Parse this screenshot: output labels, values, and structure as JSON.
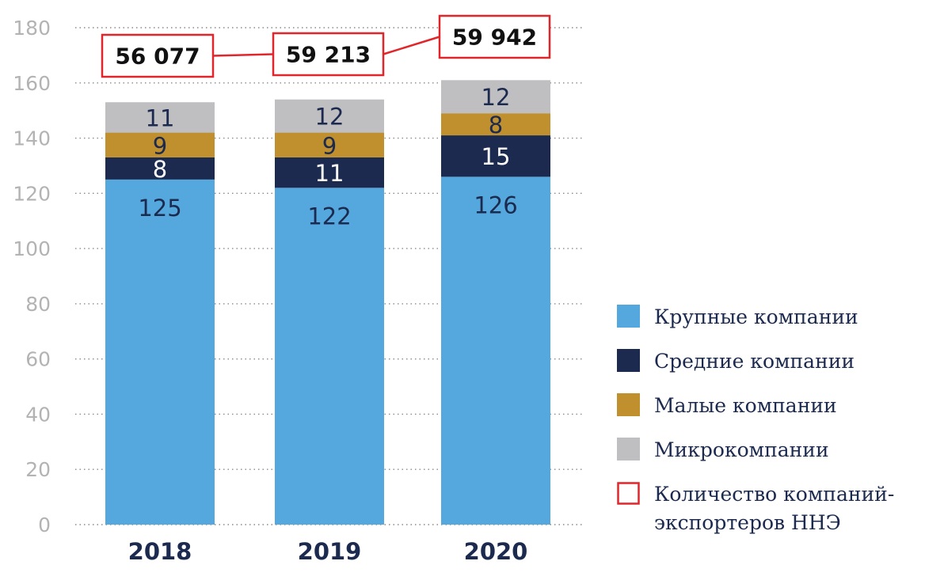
{
  "chart_data": {
    "type": "bar",
    "stacked": true,
    "categories": [
      "2018",
      "2019",
      "2020"
    ],
    "series": [
      {
        "name": "Крупные компании",
        "values": [
          125,
          122,
          126
        ],
        "color": "#55a8dd",
        "label_color": "#1b2a4e"
      },
      {
        "name": "Средние компании",
        "values": [
          8,
          11,
          15
        ],
        "color": "#1b2a4e",
        "label_color": "#ffffff"
      },
      {
        "name": "Малые компании",
        "values": [
          9,
          9,
          8
        ],
        "color": "#c0902e",
        "label_color": "#1b2a4e"
      },
      {
        "name": "Микрокомпании",
        "values": [
          11,
          12,
          12
        ],
        "color": "#bfbfc2",
        "label_color": "#1b2a4e"
      }
    ],
    "totals": {
      "name": "Количество компаний-экспортеров ННЭ",
      "legend_lines": [
        "Количество компаний-",
        "экспортеров ННЭ"
      ],
      "values": [
        "56 077",
        "59 213",
        "59 942"
      ],
      "color": "#e0262b"
    },
    "yticks": [
      "0",
      "20",
      "40",
      "60",
      "80",
      "100",
      "120",
      "140",
      "160",
      "180"
    ],
    "ylim": [
      0,
      180
    ],
    "grid": true,
    "legend_position": "right",
    "title": "",
    "xlabel": "",
    "ylabel": ""
  }
}
